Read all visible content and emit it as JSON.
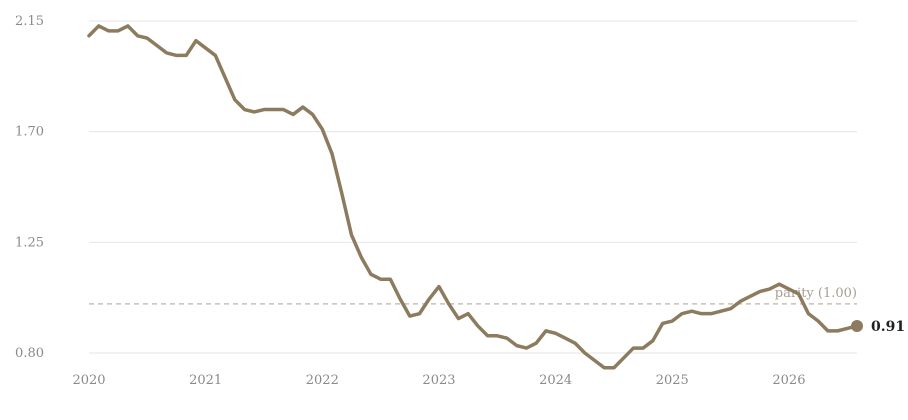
{
  "chart_data": {
    "type": "line",
    "title": "",
    "xlabel": "",
    "ylabel": "",
    "ylim": [
      0.8,
      2.15
    ],
    "xlim": [
      "2020-01",
      "2026-08"
    ],
    "y_ticks": [
      "0.80",
      "1.25",
      "1.70",
      "2.15"
    ],
    "x_ticks": [
      "2020",
      "2021",
      "2022",
      "2023",
      "2024",
      "2025",
      "2026"
    ],
    "grid": true,
    "color": "#8c7b5e",
    "reference_line": {
      "value": 1.0,
      "label": "parity (1.00)",
      "color": "#c9c1b4"
    },
    "end_label": "0.91",
    "series": [
      {
        "name": "",
        "x": [
          "2020-01",
          "2020-02",
          "2020-03",
          "2020-04",
          "2020-05",
          "2020-06",
          "2020-07",
          "2020-08",
          "2020-09",
          "2020-10",
          "2020-11",
          "2020-12",
          "2021-01",
          "2021-02",
          "2021-03",
          "2021-04",
          "2021-05",
          "2021-06",
          "2021-07",
          "2021-08",
          "2021-09",
          "2021-10",
          "2021-11",
          "2021-12",
          "2022-01",
          "2022-02",
          "2022-03",
          "2022-04",
          "2022-05",
          "2022-06",
          "2022-07",
          "2022-08",
          "2022-09",
          "2022-10",
          "2022-11",
          "2022-12",
          "2023-01",
          "2023-02",
          "2023-03",
          "2023-04",
          "2023-05",
          "2023-06",
          "2023-07",
          "2023-08",
          "2023-09",
          "2023-10",
          "2023-11",
          "2023-12",
          "2024-01",
          "2024-02",
          "2024-03",
          "2024-04",
          "2024-05",
          "2024-06",
          "2024-07",
          "2024-08",
          "2024-09",
          "2024-10",
          "2024-11",
          "2024-12",
          "2025-01",
          "2025-02",
          "2025-03",
          "2025-04",
          "2025-05",
          "2025-06",
          "2025-07",
          "2025-08",
          "2025-09",
          "2025-10",
          "2025-11",
          "2025-12",
          "2026-01",
          "2026-02",
          "2026-03",
          "2026-04",
          "2026-05",
          "2026-06",
          "2026-07",
          "2026-08"
        ],
        "values": [
          2.09,
          2.13,
          2.11,
          2.11,
          2.13,
          2.09,
          2.08,
          2.05,
          2.02,
          2.01,
          2.01,
          2.07,
          2.04,
          2.01,
          1.92,
          1.83,
          1.79,
          1.78,
          1.79,
          1.79,
          1.79,
          1.77,
          1.8,
          1.77,
          1.71,
          1.61,
          1.45,
          1.28,
          1.19,
          1.12,
          1.1,
          1.1,
          1.02,
          0.95,
          0.96,
          1.02,
          1.07,
          1.0,
          0.94,
          0.96,
          0.91,
          0.87,
          0.87,
          0.86,
          0.83,
          0.82,
          0.84,
          0.89,
          0.88,
          0.86,
          0.84,
          0.8,
          0.77,
          0.74,
          0.74,
          0.78,
          0.82,
          0.82,
          0.85,
          0.92,
          0.93,
          0.96,
          0.97,
          0.96,
          0.96,
          0.97,
          0.98,
          1.01,
          1.03,
          1.05,
          1.06,
          1.08,
          1.06,
          1.04,
          0.96,
          0.93,
          0.89,
          0.89,
          0.9,
          0.91
        ]
      }
    ]
  }
}
